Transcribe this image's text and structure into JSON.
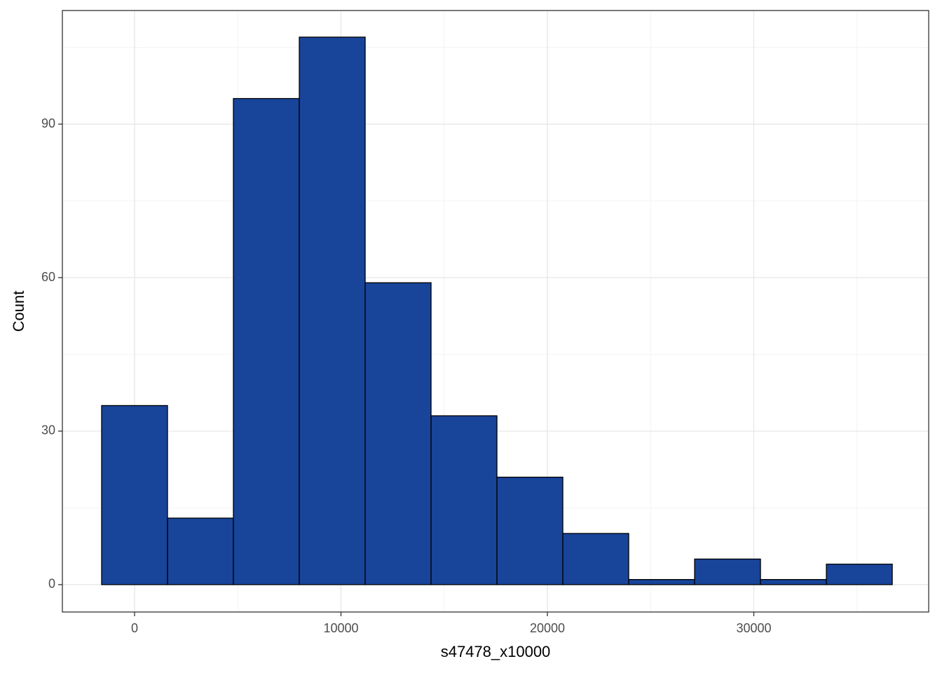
{
  "chart_data": {
    "type": "histogram",
    "x_label": "s47478_x10000",
    "y_label": "Count",
    "bins": [
      -1596,
      1596,
      4788,
      7980,
      11172,
      14364,
      17556,
      20748,
      23940,
      27132,
      30324,
      33516,
      36708
    ],
    "values": [
      35,
      13,
      95,
      107,
      59,
      33,
      21,
      10,
      1,
      5,
      1,
      4
    ],
    "color": "#18449a",
    "edge_color": "#000000",
    "xlim": [
      -3497,
      38472
    ],
    "xticks": [
      0,
      10000,
      20000,
      30000
    ],
    "x_minor_ticks": [
      5000,
      15000,
      25000,
      35000
    ],
    "ylim": [
      -5.35,
      112.2
    ],
    "yticks": [
      0,
      30,
      60,
      90
    ],
    "y_minor_ticks": [
      15,
      45,
      75,
      105
    ],
    "grid": true
  }
}
